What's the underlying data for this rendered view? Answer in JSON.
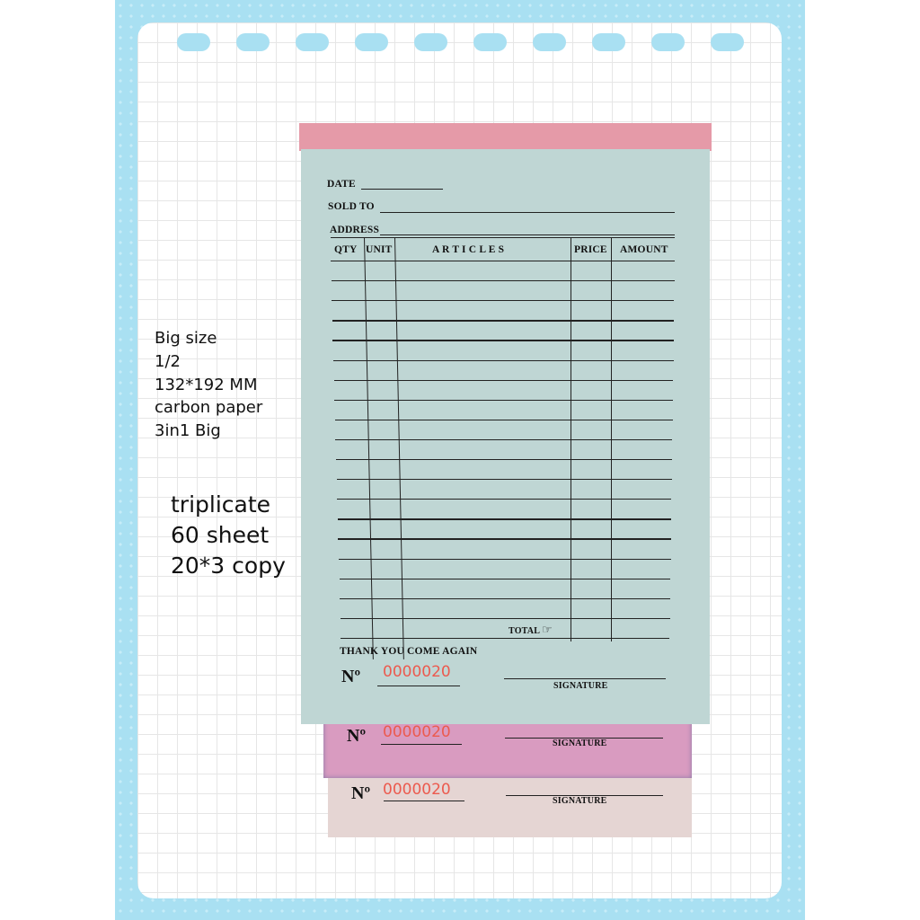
{
  "specs": [
    "Big size",
    "1/2",
    "132*192 MM",
    "carbon paper",
    "3in1 Big"
  ],
  "specs2": [
    "triplicate",
    "60 sheet",
    "20*3 copy"
  ],
  "form": {
    "date": "DATE",
    "sold_to": "SOLD TO",
    "address": "ADDRESS",
    "columns": [
      "QTY",
      "UNIT",
      "A R T I C L E S",
      "PRICE",
      "AMOUNT"
    ],
    "total": "TOTAL",
    "total_icon": "pointing-hand-icon",
    "thank_you": "THANK  YOU   COME AGAIN",
    "no_label": "Nº",
    "number": "0000020",
    "signature": "SIGNATURE"
  },
  "colors": {
    "frame": "#a9e0f2",
    "original": "#bfd6d4",
    "copy1": "#d99bc0",
    "copy2": "#e5d5d3",
    "number": "#ec5a4e"
  }
}
